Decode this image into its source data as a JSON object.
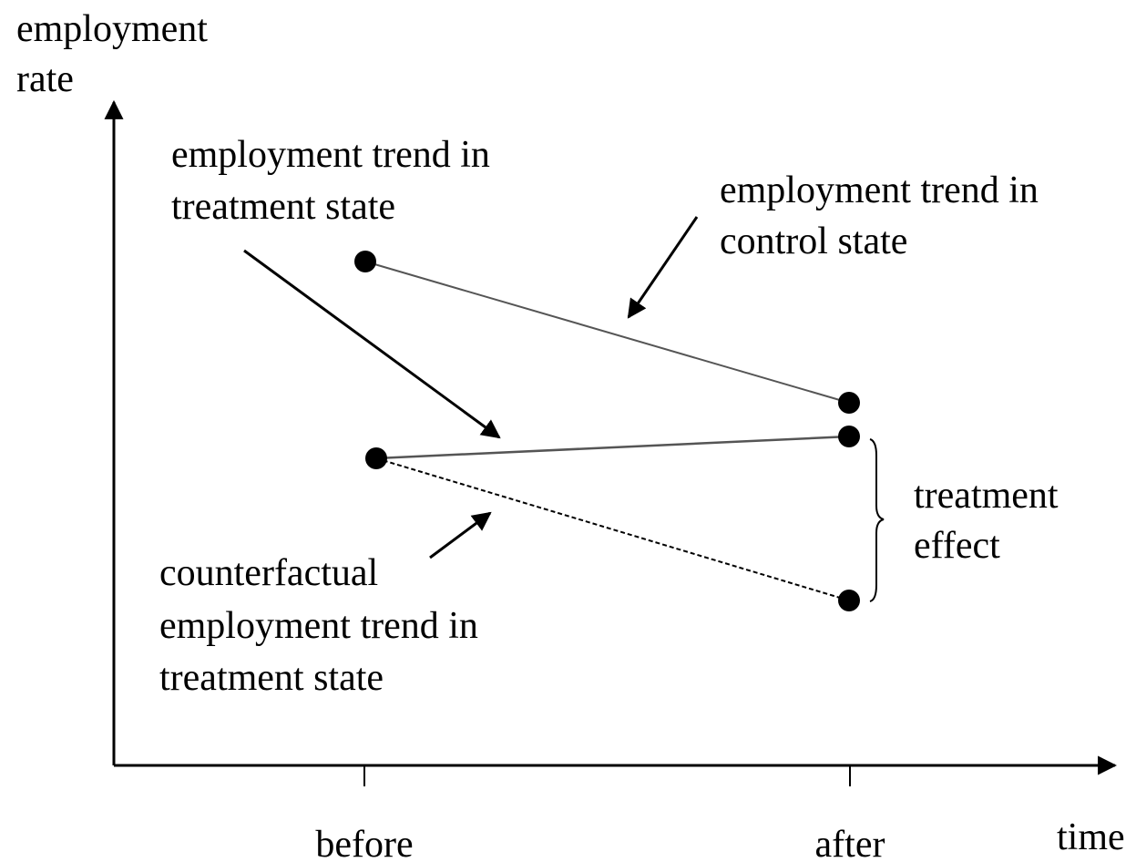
{
  "axes": {
    "y_label": [
      "employment",
      "rate"
    ],
    "x_label": "time",
    "x_ticks": [
      "before",
      "after"
    ]
  },
  "annotations": {
    "treatment_trend": [
      "employment trend in",
      "treatment state"
    ],
    "control_trend": [
      "employment trend in",
      "control state"
    ],
    "counterfactual_trend": [
      "counterfactual",
      "employment trend in",
      "treatment state"
    ],
    "treatment_effect": [
      "treatment",
      "effect"
    ]
  }
}
